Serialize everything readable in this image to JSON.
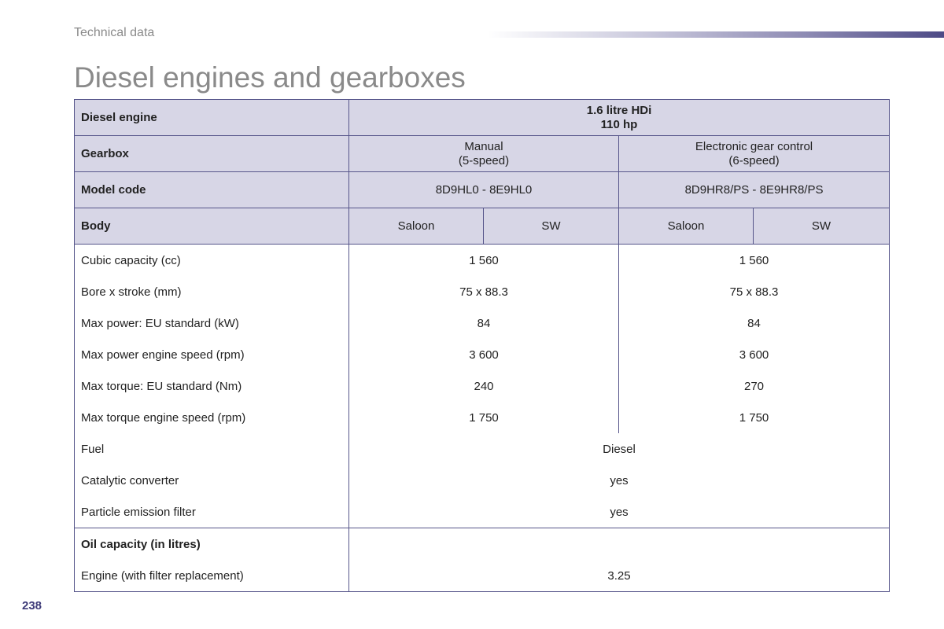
{
  "header": {
    "section": "Technical data",
    "title": "Diesel engines and gearboxes"
  },
  "table": {
    "engine": {
      "label": "Diesel engine",
      "value_line1": "1.6 litre HDi",
      "value_line2": "110 hp"
    },
    "gearbox": {
      "label": "Gearbox",
      "col1_line1": "Manual",
      "col1_line2": "(5-speed)",
      "col2_line1": "Electronic gear control",
      "col2_line2": "(6-speed)"
    },
    "model_code": {
      "label": "Model code",
      "col1": "8D9HL0 - 8E9HL0",
      "col2": "8D9HR8/PS - 8E9HR8/PS"
    },
    "body": {
      "label": "Body",
      "values": [
        "Saloon",
        "SW",
        "Saloon",
        "SW"
      ]
    },
    "rows": [
      {
        "label": "Cubic capacity (cc)",
        "col1": "1 560",
        "col2": "1 560"
      },
      {
        "label": "Bore x stroke (mm)",
        "col1": "75 x 88.3",
        "col2": "75 x 88.3"
      },
      {
        "label": "Max power: EU standard (kW)",
        "col1": "84",
        "col2": "84"
      },
      {
        "label": "Max power engine speed (rpm)",
        "col1": "3 600",
        "col2": "3 600"
      },
      {
        "label": "Max torque: EU standard (Nm)",
        "col1": "240",
        "col2": "270"
      },
      {
        "label": "Max torque engine speed (rpm)",
        "col1": "1 750",
        "col2": "1 750"
      }
    ],
    "shared_rows": [
      {
        "label": "Fuel",
        "value": "Diesel"
      },
      {
        "label": "Catalytic converter",
        "value": "yes"
      },
      {
        "label": "Particle emission filter",
        "value": "yes"
      }
    ],
    "oil": {
      "label": "Oil capacity (in litres)",
      "engine_label": "Engine (with filter replacement)",
      "engine_value": "3.25"
    }
  },
  "page_number": "238",
  "colors": {
    "border": "#56558a",
    "header_fill": "#d7d6e6",
    "page_number": "#3d3a78"
  }
}
